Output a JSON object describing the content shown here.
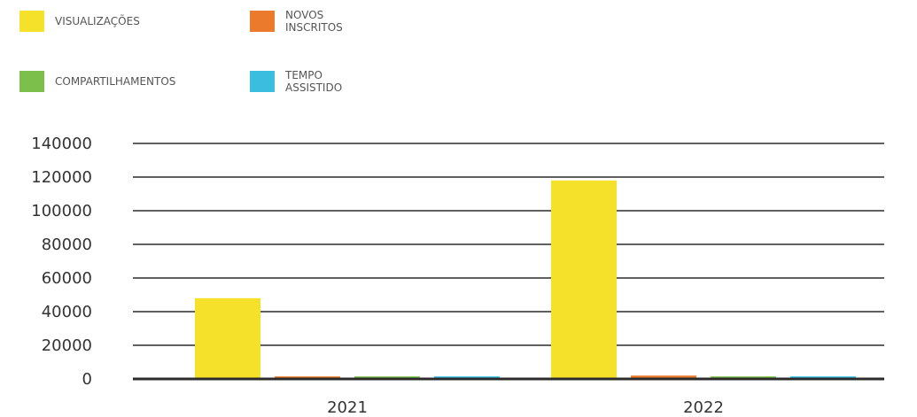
{
  "chart_data": {
    "type": "bar",
    "categories": [
      "2021",
      "2022"
    ],
    "series": [
      {
        "name": "VISUALIZAÇÕES",
        "legend_lines": [
          "VISUALIZAÇÕES"
        ],
        "color": "#f5e02a",
        "values": [
          48000,
          118000
        ]
      },
      {
        "name": "NOVOS INSCRITOS",
        "legend_lines": [
          "NOVOS",
          "INSCRITOS"
        ],
        "color": "#ec7a2c",
        "values": [
          1500,
          2000
        ]
      },
      {
        "name": "COMPARTILHAMENTOS",
        "legend_lines": [
          "COMPARTILHAMENTOS"
        ],
        "color": "#7cc04b",
        "values": [
          1500,
          1500
        ]
      },
      {
        "name": "TEMPO ASSISTIDO",
        "legend_lines": [
          "TEMPO",
          "ASSISTIDO"
        ],
        "color": "#3bbde0",
        "values": [
          1500,
          1500
        ]
      }
    ],
    "yticks": [
      0,
      20000,
      40000,
      60000,
      80000,
      100000,
      120000,
      140000
    ],
    "ylim": [
      0,
      140000
    ],
    "grid": true,
    "legend_position": "top-left"
  }
}
